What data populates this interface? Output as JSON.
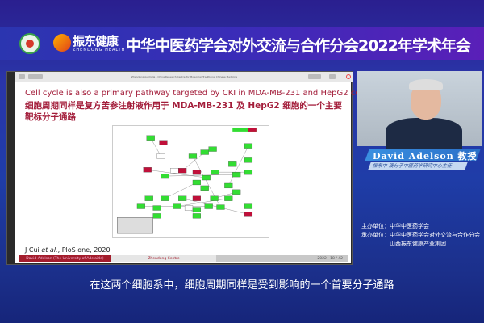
{
  "header": {
    "brand_name": "振东健康",
    "brand_sub": "ZHENDONG HEALTH",
    "title": "中华中医药学会对外交流与合作分会2022年学术年会"
  },
  "slide": {
    "window_title": "Zhendong Australia - China Research Centre for Molecular Traditional Chinese Medicine",
    "title_en": "Cell cycle is also a primary pathway targeted by CKI in MDA-MB-231 and HepG2 cells",
    "title_zh": "细胞周期同样是复方苦参注射液作用于 MDA-MB-231 及 HepG2 细胞的一个主要靶标分子通路",
    "citation_author": "J Cui ",
    "citation_etal": "et al.",
    "citation_rest": ", PloS one, 2020",
    "footer_left": "David Adelson (The University of Adelaide)",
    "footer_center": "Zhendong Centre",
    "footer_year": "2022",
    "footer_page": "18 / 42",
    "diagram_colors": {
      "up": "#c0103a",
      "down": "#33dd33",
      "neutral": "#ffffff"
    }
  },
  "speaker": {
    "name": "David Adelson  教授",
    "role": "振东中-澳分子中医药学研究中心主任"
  },
  "organizers": {
    "host_label": "主办单位：",
    "host": "中华中医药学会",
    "co_label": "承办单位：",
    "co1": "中华中医药学会对外交流与合作分会",
    "co2": "山西振东健康产业集团"
  },
  "subtitle": "在这两个细胞系中，细胞周期同样是受到影响的一个首要分子通路"
}
